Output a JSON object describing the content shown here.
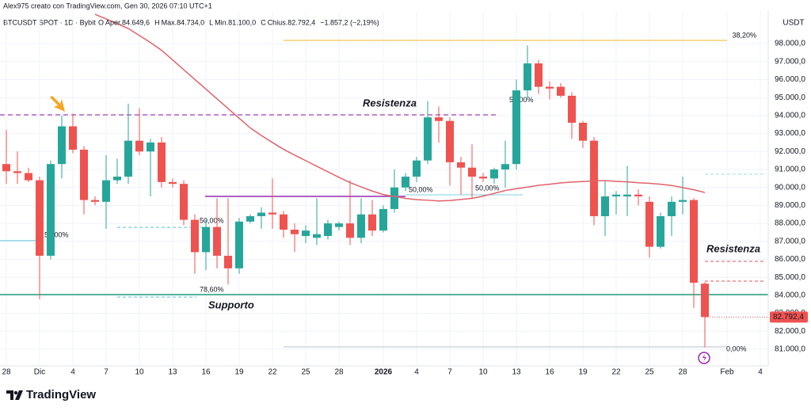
{
  "chart_data": {
    "type": "candlestick",
    "credit": "Alex975 creato con TradingView.com, Gen 30, 2026 07:10 UTC+1",
    "symbol": "BTCUSDT SPOT · 1D · Bybit",
    "ohlc_legend": [
      "O",
      "Aper.84.649,6",
      "H",
      "Max.84.734,0",
      "L",
      "Min.81.100,0",
      "C",
      "Chius.82.792,4",
      "−1.857,2 (−2,19%)"
    ],
    "currency": "USDT",
    "brand": "TradingView",
    "up_color": "#26a69a",
    "down_color": "#ef5350",
    "ma_color": "#e0626a",
    "grid": true,
    "categories": [
      "28",
      null,
      null,
      "Dic",
      null,
      null,
      "4",
      null,
      null,
      "7",
      null,
      null,
      "10",
      null,
      null,
      "13",
      null,
      null,
      "16",
      null,
      null,
      "19",
      null,
      null,
      "22",
      null,
      null,
      "25",
      null,
      null,
      "28",
      null,
      null,
      null,
      "2026",
      null,
      null,
      "4",
      null,
      null,
      "7",
      null,
      null,
      "10",
      null,
      null,
      "13",
      null,
      null,
      "16",
      null,
      null,
      "19",
      null,
      null,
      "22",
      null,
      null,
      "25",
      null,
      null,
      "28",
      null,
      null,
      null,
      "Feb",
      null,
      null,
      "4"
    ],
    "open": [
      91300,
      90900,
      90800,
      90400,
      86200,
      91300,
      93400,
      92100,
      89300,
      89200,
      90400,
      90600,
      92600,
      92000,
      92500,
      90300,
      90200,
      88200,
      86400,
      87800,
      86200,
      85500,
      88100,
      88400,
      88600,
      88500,
      87650,
      87300,
      87200,
      87300,
      87800,
      88000,
      87200,
      88500,
      87600,
      88800,
      90000,
      90600,
      91500,
      93900,
      93700,
      91400,
      91100,
      90600,
      90500,
      91000,
      91300,
      95400,
      96900,
      95600,
      95600,
      95100,
      93600,
      92600,
      88400,
      89500,
      89500,
      89600,
      89200,
      86700,
      88400,
      89200,
      89300,
      84649.6,
      null,
      null,
      null,
      null,
      null
    ],
    "high": [
      93200,
      92000,
      91100,
      90600,
      91500,
      94000,
      94100,
      92300,
      89500,
      91800,
      91600,
      94660,
      94400,
      92700,
      92800,
      90500,
      90400,
      88500,
      88200,
      89400,
      89400,
      88300,
      88500,
      88900,
      90500,
      88700,
      88000,
      87900,
      89400,
      88200,
      88100,
      90400,
      89400,
      89300,
      89000,
      91000,
      90800,
      91700,
      94800,
      94500,
      93900,
      91700,
      92400,
      90800,
      91100,
      92600,
      96000,
      97900,
      97100,
      95900,
      95800,
      95300,
      93700,
      92800,
      90400,
      89800,
      91200,
      89900,
      89500,
      88600,
      89500,
      90600,
      89400,
      84734,
      null,
      null,
      null,
      null,
      null
    ],
    "low": [
      90200,
      90200,
      90300,
      83780,
      86000,
      90500,
      91900,
      88500,
      89000,
      87700,
      90200,
      90200,
      91800,
      89500,
      90000,
      90000,
      87900,
      85200,
      85400,
      85500,
      84600,
      85200,
      88000,
      87700,
      87700,
      87200,
      86400,
      86900,
      86800,
      87100,
      87600,
      86800,
      86900,
      87300,
      87500,
      88600,
      89800,
      90300,
      91300,
      92500,
      90100,
      89600,
      89400,
      90300,
      90200,
      90000,
      91000,
      94900,
      95200,
      94900,
      95000,
      92700,
      92200,
      87900,
      87300,
      88500,
      88400,
      89000,
      86100,
      86600,
      87300,
      88500,
      83300,
      81100,
      null,
      null,
      null,
      null,
      null
    ],
    "close": [
      90900,
      90800,
      90400,
      86200,
      91300,
      93400,
      92100,
      89300,
      89200,
      90400,
      90600,
      92600,
      92000,
      92500,
      90300,
      90200,
      88200,
      86400,
      87800,
      86200,
      85500,
      88100,
      88400,
      88600,
      88500,
      87650,
      87400,
      87600,
      87400,
      88000,
      88000,
      87200,
      88500,
      87600,
      88800,
      90000,
      90600,
      91500,
      93900,
      93700,
      91400,
      91100,
      90600,
      90500,
      91000,
      91300,
      95400,
      96900,
      95600,
      95500,
      95100,
      93600,
      92600,
      88400,
      89500,
      89600,
      89600,
      89500,
      86700,
      88400,
      89200,
      89300,
      84700,
      82792.4,
      null,
      null,
      null,
      null,
      null
    ],
    "ma": [
      null,
      null,
      null,
      null,
      null,
      null,
      null,
      null,
      99630,
      99370,
      99110,
      98840,
      98450,
      98060,
      97630,
      97090,
      96550,
      96010,
      95470,
      94930,
      94390,
      93850,
      93310,
      92890,
      92500,
      92120,
      91800,
      91490,
      91180,
      90870,
      90560,
      90270,
      90030,
      89800,
      89600,
      89500,
      89390,
      89320,
      89290,
      89250,
      89270,
      89330,
      89390,
      89520,
      89670,
      89830,
      89930,
      90020,
      90120,
      90180,
      90250,
      90300,
      90330,
      90360,
      90380,
      90340,
      90310,
      90260,
      90230,
      90180,
      90110,
      89990,
      89870,
      89720,
      null,
      null,
      null,
      null,
      null
    ],
    "last_price_label": "82.792,4",
    "ylim": [
      80075,
      99810
    ],
    "yticks": [
      {
        "value": 81000,
        "label": "81.000,0"
      },
      {
        "value": 82000,
        "label": "82.000,0"
      },
      {
        "value": 83000,
        "label": "83.000,0"
      },
      {
        "value": 84000,
        "label": "84.000,0"
      },
      {
        "value": 85000,
        "label": "85.000,0"
      },
      {
        "value": 86000,
        "label": "86.000,0"
      },
      {
        "value": 87000,
        "label": "87.000,0"
      },
      {
        "value": 88000,
        "label": "88.000,0"
      },
      {
        "value": 89000,
        "label": "89.000,0"
      },
      {
        "value": 90000,
        "label": "90.000,0"
      },
      {
        "value": 91000,
        "label": "91.000,0"
      },
      {
        "value": 92000,
        "label": "92.000,0"
      },
      {
        "value": 93000,
        "label": "93.000,0"
      },
      {
        "value": 94000,
        "label": "94.000,0"
      },
      {
        "value": 95000,
        "label": "95.000,0"
      },
      {
        "value": 96000,
        "label": "96.000,0"
      },
      {
        "value": 97000,
        "label": "97.000,0"
      },
      {
        "value": 98000,
        "label": "98.000,0"
      }
    ],
    "levels": [
      {
        "label": "38,20%",
        "value": 98180,
        "color": "#f0b429"
      },
      {
        "label": "50,00%",
        "value": 87040,
        "color": "#5bc0de"
      },
      {
        "label": "50,00%",
        "value": 87780,
        "color": "#5bc0de"
      },
      {
        "label": "78,60%",
        "value": 83900,
        "color": "#5bc0de"
      },
      {
        "label": "50,00%",
        "value": 89590,
        "color": "#7fd0e6"
      },
      {
        "label": "50,00%",
        "value": 89590,
        "color": "#7fd0e6"
      },
      {
        "label": "50,00%",
        "value": 94850,
        "color": "#7fd0e6"
      },
      {
        "label": "0,00%",
        "value": 81130,
        "color": "#b7c0cc"
      },
      {
        "label": "Resistenza",
        "value": 94040,
        "color": "#b05fc7"
      },
      {
        "label": "Supporto",
        "value": 84040,
        "color": "#1e9e7a"
      },
      {
        "label": "Resistenza",
        "value": 85890,
        "color": "#e0505a"
      },
      {
        "value": 84790,
        "color": "#e0505a"
      },
      {
        "value": 90740,
        "color": "#9fdde0"
      },
      {
        "value": 89500,
        "color": "#b05fc7"
      }
    ]
  }
}
